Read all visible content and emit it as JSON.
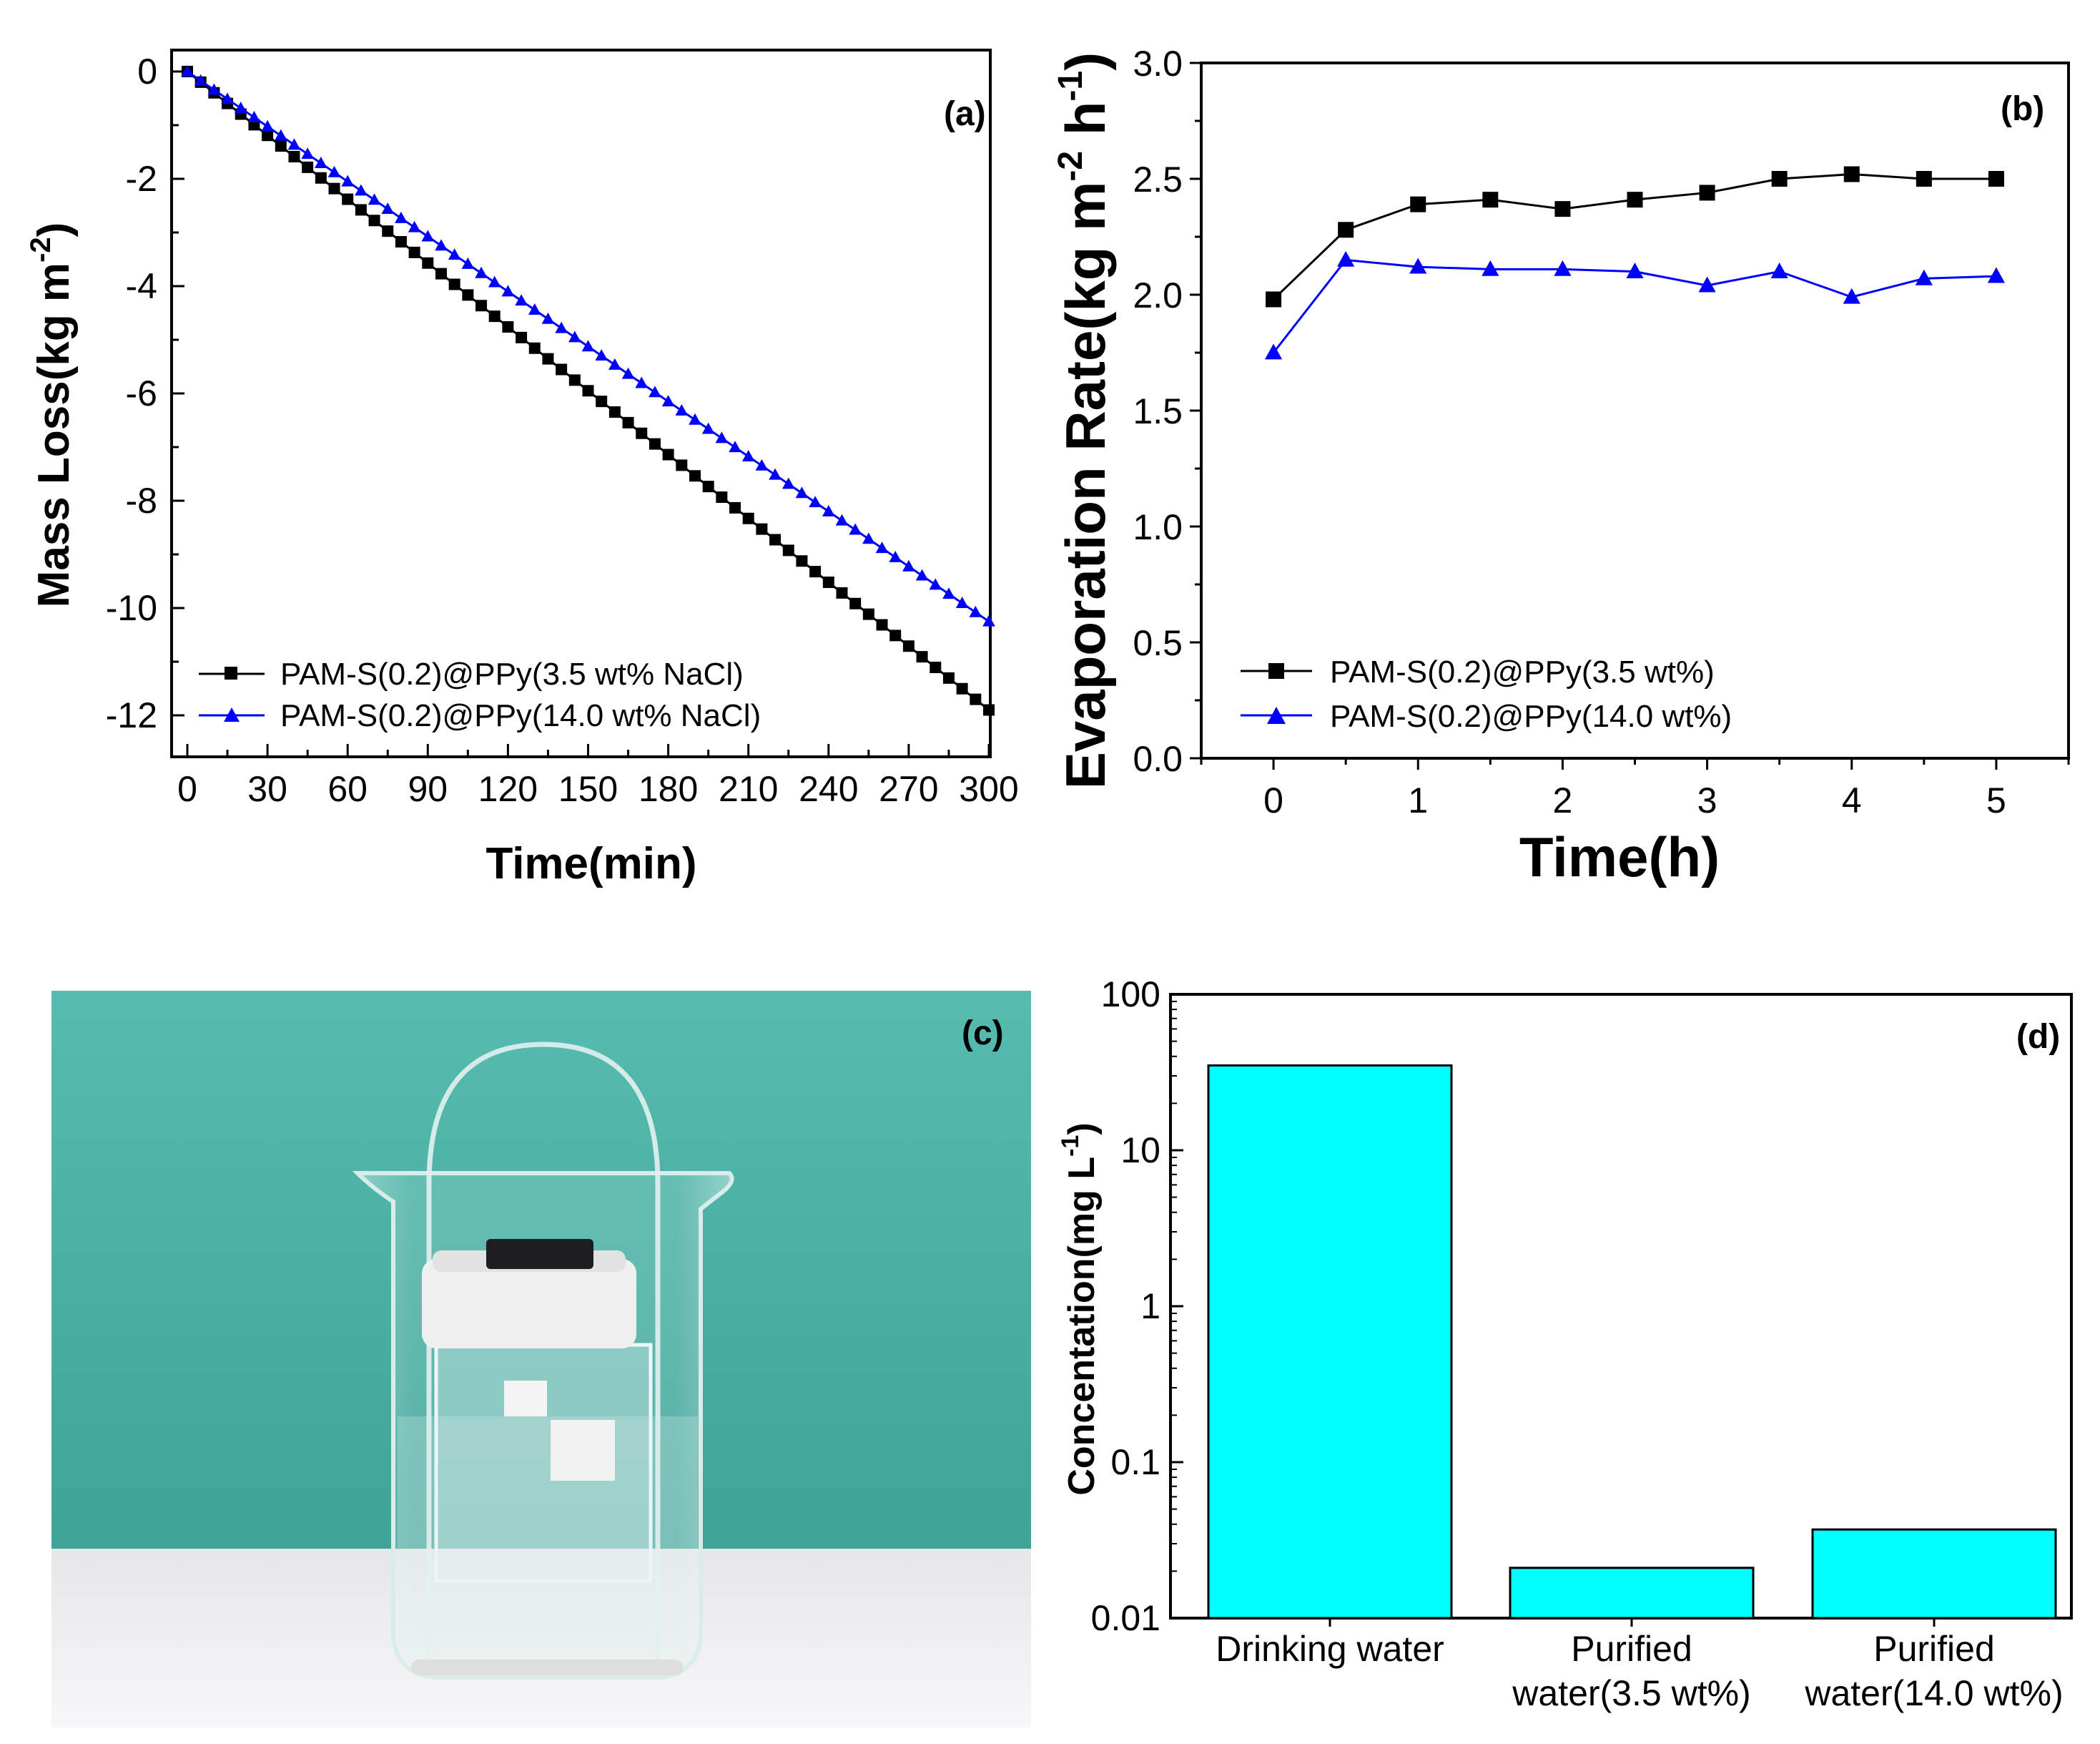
{
  "chart_data": [
    {
      "id": "a",
      "type": "line",
      "panel_label": "(a)",
      "xlabel": "Time(min)",
      "ylabel": "Mass Loss(kg m",
      "ylabel_sup": "-2",
      "ylabel_tail": ")",
      "xlim": [
        0,
        300
      ],
      "ylim": [
        -12.5,
        0.2
      ],
      "xticks": [
        "0",
        "30",
        "60",
        "90",
        "120",
        "150",
        "180",
        "210",
        "240",
        "270",
        "300"
      ],
      "xtick_values": [
        0,
        30,
        60,
        90,
        120,
        150,
        180,
        210,
        240,
        270,
        300
      ],
      "yticks": [
        "0",
        "-2",
        "-4",
        "-6",
        "-8",
        "-10",
        "-12"
      ],
      "ytick_values": [
        0,
        -2,
        -4,
        -6,
        -8,
        -10,
        -12
      ],
      "series": [
        {
          "name": "PAM-S(0.2)@PPy(3.5 wt% NaCl)",
          "color": "#000000",
          "marker": "square",
          "x_start": 0,
          "x_end": 300,
          "x_step": 5,
          "y_start": 0,
          "y_end": -11.9
        },
        {
          "name": "PAM-S(0.2)@PPy(14.0 wt% NaCl)",
          "color": "#0000ff",
          "marker": "triangle",
          "x_start": 0,
          "x_end": 300,
          "x_step": 5,
          "y_start": 0,
          "y_end": -10.25
        }
      ]
    },
    {
      "id": "b",
      "type": "line",
      "panel_label": "(b)",
      "xlabel": "Time(h)",
      "ylabel": "Evaporation Rate(kg m",
      "ylabel_sup1": "-2",
      "ylabel_mid": " h",
      "ylabel_sup2": "-1",
      "ylabel_tail": ")",
      "xlim": [
        -0.5,
        5.5
      ],
      "ylim": [
        0,
        3.0
      ],
      "xticks": [
        "0",
        "1",
        "2",
        "3",
        "4",
        "5"
      ],
      "xtick_values": [
        0,
        1,
        2,
        3,
        4,
        5
      ],
      "yticks": [
        "0.0",
        "0.5",
        "1.0",
        "1.5",
        "2.0",
        "2.5",
        "3.0"
      ],
      "ytick_values": [
        0,
        0.5,
        1.0,
        1.5,
        2.0,
        2.5,
        3.0
      ],
      "x": [
        0,
        0.5,
        1,
        1.5,
        2,
        2.5,
        3,
        3.5,
        4,
        4.5,
        5
      ],
      "series": [
        {
          "name": "PAM-S(0.2)@PPy(3.5 wt%)",
          "color": "#000000",
          "marker": "square",
          "values": [
            1.98,
            2.28,
            2.39,
            2.41,
            2.37,
            2.41,
            2.44,
            2.5,
            2.52,
            2.5,
            2.5
          ]
        },
        {
          "name": "PAM-S(0.2)@PPy(14.0 wt%)",
          "color": "#0000ff",
          "marker": "triangle",
          "values": [
            1.75,
            2.15,
            2.12,
            2.11,
            2.11,
            2.1,
            2.04,
            2.1,
            1.99,
            2.07,
            2.08
          ]
        }
      ]
    },
    {
      "id": "d",
      "type": "bar",
      "panel_label": "(d)",
      "ylabel": "Concentation(mg L",
      "ylabel_sup": "-1",
      "ylabel_tail": ")",
      "yscale": "log",
      "ylim": [
        0.01,
        100
      ],
      "yticks": [
        "100",
        "10",
        "1",
        "0.1",
        "0.01"
      ],
      "ytick_values": [
        100,
        10,
        1,
        0.1,
        0.01
      ],
      "categories": [
        [
          "Drinking water"
        ],
        [
          "Purified",
          "water(3.5 wt%)"
        ],
        [
          "Purified",
          "water(14.0 wt%)"
        ]
      ],
      "values": [
        35,
        0.021,
        0.037
      ],
      "bar_color": "#00ffff"
    }
  ],
  "photo": {
    "panel_label": "(c)",
    "description_hidden": false
  },
  "colors": {
    "wall": "#4fb4a8",
    "table": "#f1f1f3",
    "absorber": "#1d1d22"
  }
}
